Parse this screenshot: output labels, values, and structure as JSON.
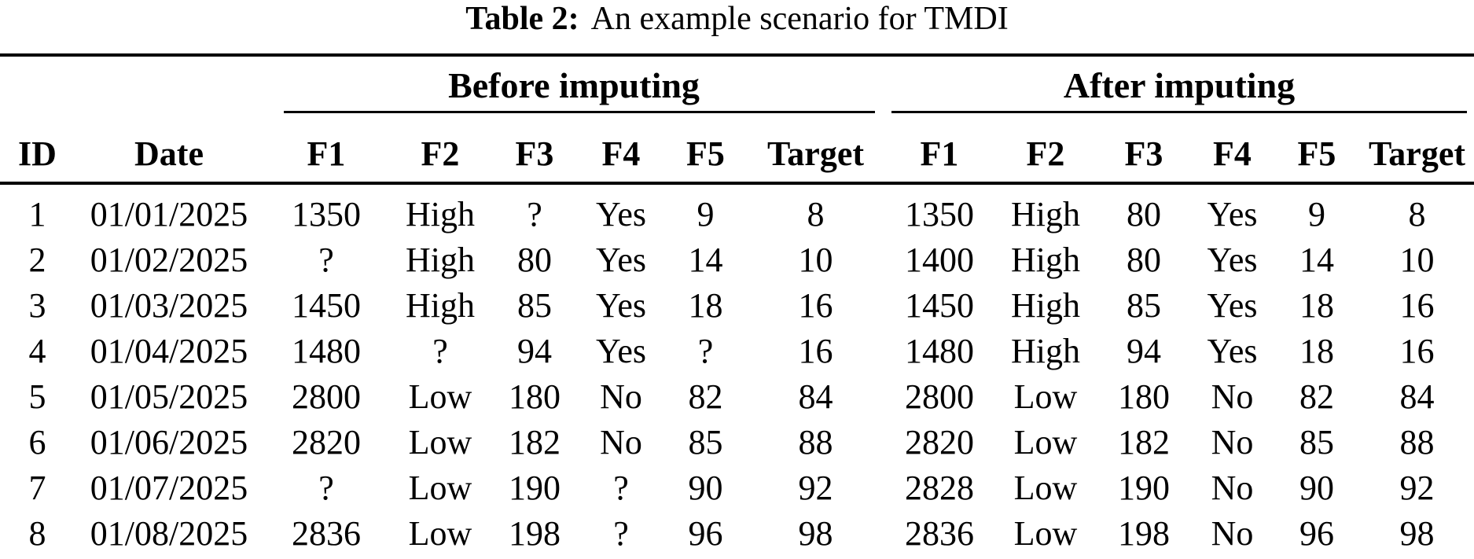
{
  "title": {
    "label": "Table 2:",
    "caption": "An example scenario for TMDI"
  },
  "table": {
    "group_headers": [
      {
        "label": "Before imputing",
        "span": 6
      },
      {
        "label": "After imputing",
        "span": 6
      }
    ],
    "columns": [
      "ID",
      "Date",
      "F1",
      "F2",
      "F3",
      "F4",
      "F5",
      "Target",
      "F1",
      "F2",
      "F3",
      "F4",
      "F5",
      "Target"
    ],
    "rows": [
      [
        "1",
        "01/01/2025",
        "1350",
        "High",
        "?",
        "Yes",
        "9",
        "8",
        "1350",
        "High",
        "80",
        "Yes",
        "9",
        "8"
      ],
      [
        "2",
        "01/02/2025",
        "?",
        "High",
        "80",
        "Yes",
        "14",
        "10",
        "1400",
        "High",
        "80",
        "Yes",
        "14",
        "10"
      ],
      [
        "3",
        "01/03/2025",
        "1450",
        "High",
        "85",
        "Yes",
        "18",
        "16",
        "1450",
        "High",
        "85",
        "Yes",
        "18",
        "16"
      ],
      [
        "4",
        "01/04/2025",
        "1480",
        "?",
        "94",
        "Yes",
        "?",
        "16",
        "1480",
        "High",
        "94",
        "Yes",
        "18",
        "16"
      ],
      [
        "5",
        "01/05/2025",
        "2800",
        "Low",
        "180",
        "No",
        "82",
        "84",
        "2800",
        "Low",
        "180",
        "No",
        "82",
        "84"
      ],
      [
        "6",
        "01/06/2025",
        "2820",
        "Low",
        "182",
        "No",
        "85",
        "88",
        "2820",
        "Low",
        "182",
        "No",
        "85",
        "88"
      ],
      [
        "7",
        "01/07/2025",
        "?",
        "Low",
        "190",
        "?",
        "90",
        "92",
        "2828",
        "Low",
        "190",
        "No",
        "90",
        "92"
      ],
      [
        "8",
        "01/08/2025",
        "2836",
        "Low",
        "198",
        "?",
        "96",
        "98",
        "2836",
        "Low",
        "198",
        "No",
        "96",
        "98"
      ]
    ]
  },
  "colors": {
    "text": "#000000",
    "background": "#ffffff",
    "rule": "#000000"
  }
}
